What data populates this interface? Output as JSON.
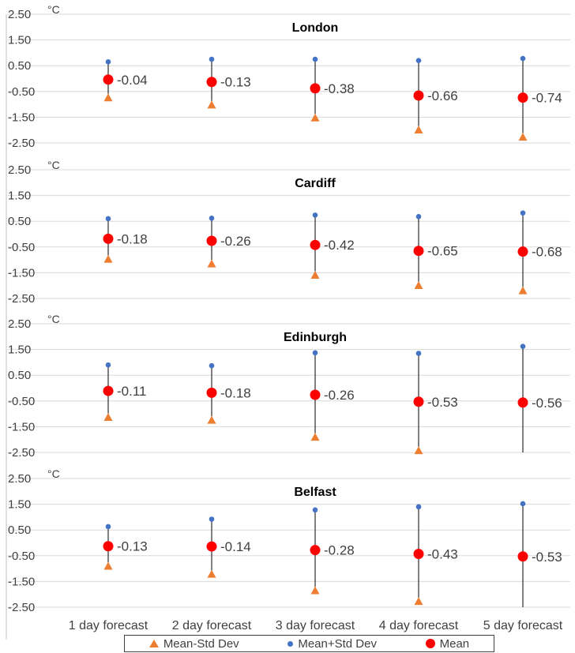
{
  "chart_data": {
    "type": "scatter",
    "unit": "°C",
    "categories": [
      "1 day forecast",
      "2 day forecast",
      "3 day forecast",
      "4 day forecast",
      "5 day forecast"
    ],
    "ylim": [
      -2.5,
      2.5
    ],
    "yticks": [
      "2.50",
      "1.50",
      "0.50",
      "-0.50",
      "-1.50",
      "-2.50"
    ],
    "ytick_values": [
      2.5,
      1.5,
      0.5,
      -0.5,
      -1.5,
      -2.5
    ],
    "colors": {
      "mean_minus_std": "#ED7D31",
      "mean_plus_std": "#4472C4",
      "mean": "#FF0000",
      "whisker": "#000000"
    },
    "panels": [
      {
        "title": "London",
        "mean": [
          -0.04,
          -0.13,
          -0.38,
          -0.66,
          -0.74
        ],
        "mean_labels": [
          "-0.04",
          "-0.13",
          "-0.38",
          "-0.66",
          "-0.74"
        ],
        "mean_plus_std": [
          0.65,
          0.75,
          0.75,
          0.7,
          0.78
        ],
        "mean_minus_std": [
          -0.73,
          -1.01,
          -1.51,
          -1.98,
          -2.26
        ]
      },
      {
        "title": "Cardiff",
        "mean": [
          -0.18,
          -0.26,
          -0.42,
          -0.65,
          -0.68
        ],
        "mean_labels": [
          "-0.18",
          "-0.26",
          "-0.42",
          "-0.65",
          "-0.68"
        ],
        "mean_plus_std": [
          0.6,
          0.62,
          0.74,
          0.68,
          0.82
        ],
        "mean_minus_std": [
          -0.96,
          -1.14,
          -1.58,
          -1.98,
          -2.18
        ]
      },
      {
        "title": "Edinburgh",
        "mean": [
          -0.11,
          -0.18,
          -0.26,
          -0.53,
          -0.56
        ],
        "mean_labels": [
          "-0.11",
          "-0.18",
          "-0.26",
          "-0.53",
          "-0.56"
        ],
        "mean_plus_std": [
          0.9,
          0.87,
          1.37,
          1.35,
          1.62
        ],
        "mean_minus_std": [
          -1.12,
          -1.23,
          -1.89,
          -2.41,
          -2.74
        ]
      },
      {
        "title": "Belfast",
        "mean": [
          -0.13,
          -0.14,
          -0.28,
          -0.43,
          -0.53
        ],
        "mean_labels": [
          "-0.13",
          "-0.14",
          "-0.28",
          "-0.43",
          "-0.53"
        ],
        "mean_plus_std": [
          0.63,
          0.92,
          1.28,
          1.4,
          1.52
        ],
        "mean_minus_std": [
          -0.89,
          -1.2,
          -1.84,
          -2.26,
          -2.58
        ]
      }
    ],
    "legend": [
      {
        "name": "Mean-Std Dev",
        "marker": "triangle"
      },
      {
        "name": "Mean+Std Dev",
        "marker": "small-dot"
      },
      {
        "name": "Mean",
        "marker": "big-dot"
      }
    ],
    "legend_position": "bottom",
    "grid": true
  }
}
